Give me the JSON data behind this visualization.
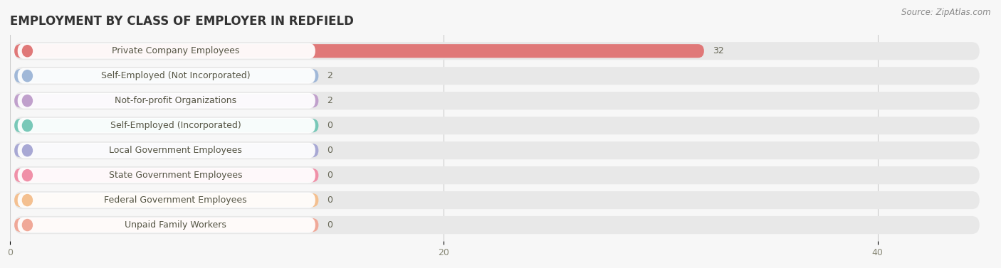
{
  "title": "EMPLOYMENT BY CLASS OF EMPLOYER IN REDFIELD",
  "source": "Source: ZipAtlas.com",
  "categories": [
    "Private Company Employees",
    "Self-Employed (Not Incorporated)",
    "Not-for-profit Organizations",
    "Self-Employed (Incorporated)",
    "Local Government Employees",
    "State Government Employees",
    "Federal Government Employees",
    "Unpaid Family Workers"
  ],
  "values": [
    32,
    2,
    2,
    0,
    0,
    0,
    0,
    0
  ],
  "bar_colors": [
    "#e07878",
    "#a0b8d8",
    "#c0a0cc",
    "#78c8b8",
    "#a8a8d4",
    "#f090a8",
    "#f4c090",
    "#f0a898"
  ],
  "xlim_max": 45,
  "xticks": [
    0,
    20,
    40
  ],
  "title_fontsize": 12,
  "label_fontsize": 9,
  "value_fontsize": 9,
  "source_fontsize": 8.5,
  "background_color": "#f7f7f7",
  "row_bg_color": "#efefef",
  "pill_bg_color": "#e8e8e8",
  "white_label_bg": "#ffffff",
  "label_text_color": "#555544",
  "value_text_color": "#666655"
}
